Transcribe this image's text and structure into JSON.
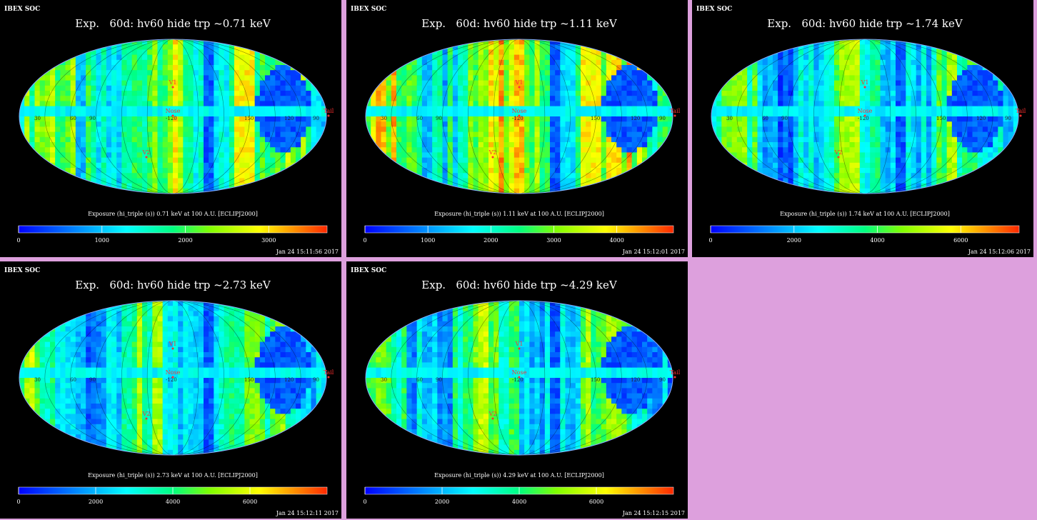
{
  "panels": [
    {
      "header": "IBEX SOC",
      "title": "Exp.   60d: hv60 hide trp ~0.71 keV",
      "colorbar_label": "Exposure (hi_triple (s))  0.71 keV at 100 A.U. [ECLIPJ2000]",
      "timestamp": "Jan 24 15:11:56 2017",
      "ticks": [
        "0",
        "1000",
        "2000",
        "3000"
      ],
      "tick_values": [
        0,
        1000,
        2000,
        3000
      ],
      "vmax": 3700,
      "level": 0.48
    },
    {
      "header": "IBEX SOC",
      "title": "Exp.   60d: hv60 hide trp ~1.11 keV",
      "colorbar_label": "Exposure (hi_triple (s))  1.11 keV at 100 A.U. [ECLIPJ2000]",
      "timestamp": "Jan 24 15:12:01 2017",
      "ticks": [
        "0",
        "1000",
        "2000",
        "3000",
        "4000"
      ],
      "tick_values": [
        0,
        1000,
        2000,
        3000,
        4000
      ],
      "vmax": 4900,
      "level": 0.55
    },
    {
      "header": "IBEX SOC",
      "title": "Exp.   60d: hv60 hide trp ~1.74 keV",
      "colorbar_label": "Exposure (hi_triple (s))  1.74 keV at 100 A.U. [ECLIPJ2000]",
      "timestamp": "Jan 24 15:12:06 2017",
      "ticks": [
        "0",
        "2000",
        "4000",
        "6000"
      ],
      "tick_values": [
        0,
        2000,
        4000,
        6000
      ],
      "vmax": 7400,
      "level": 0.4
    },
    {
      "header": "IBEX SOC",
      "title": "Exp.   60d: hv60 hide trp ~2.73 keV",
      "colorbar_label": "Exposure (hi_triple (s))  2.73 keV at 100 A.U. [ECLIPJ2000]",
      "timestamp": "Jan 24 15:12:11 2017",
      "ticks": [
        "0",
        "2000",
        "4000",
        "6000"
      ],
      "tick_values": [
        0,
        2000,
        4000,
        6000
      ],
      "vmax": 8000,
      "level": 0.4
    },
    {
      "header": "IBEX SOC",
      "title": "Exp.   60d: hv60 hide trp ~4.29 keV",
      "colorbar_label": "Exposure (hi_triple (s))  4.29 keV at 100 A.U. [ECLIPJ2000]",
      "timestamp": "Jan 24 15:12:15 2017",
      "ticks": [
        "0",
        "2000",
        "4000",
        "6000"
      ],
      "tick_values": [
        0,
        2000,
        4000,
        6000
      ],
      "vmax": 8000,
      "level": 0.4
    }
  ],
  "map_labels": {
    "markers": [
      "V1",
      "V2",
      "Nose",
      "Tail"
    ],
    "longitudes": [
      "30",
      "60",
      "90",
      "-120",
      "150",
      "120",
      "90"
    ]
  },
  "colors": {
    "panel_bg": "#000000",
    "page_bg": "#dda0dd",
    "marker": "#ff3030",
    "text": "#ffffff"
  },
  "chart_data": [
    {
      "type": "heatmap",
      "title": "Exp.   60d: hv60 hide trp ~0.71 keV",
      "colorbar_ticks": [
        0,
        1000,
        2000,
        3000
      ],
      "projection": "mollweide"
    },
    {
      "type": "heatmap",
      "title": "Exp.   60d: hv60 hide trp ~1.11 keV",
      "colorbar_ticks": [
        0,
        1000,
        2000,
        3000,
        4000
      ],
      "projection": "mollweide"
    },
    {
      "type": "heatmap",
      "title": "Exp.   60d: hv60 hide trp ~1.74 keV",
      "colorbar_ticks": [
        0,
        2000,
        4000,
        6000
      ],
      "projection": "mollweide"
    },
    {
      "type": "heatmap",
      "title": "Exp.   60d: hv60 hide trp ~2.73 keV",
      "colorbar_ticks": [
        0,
        2000,
        4000,
        6000
      ],
      "projection": "mollweide"
    },
    {
      "type": "heatmap",
      "title": "Exp.   60d: hv60 hide trp ~4.29 keV",
      "colorbar_ticks": [
        0,
        2000,
        4000,
        6000
      ],
      "projection": "mollweide"
    }
  ]
}
